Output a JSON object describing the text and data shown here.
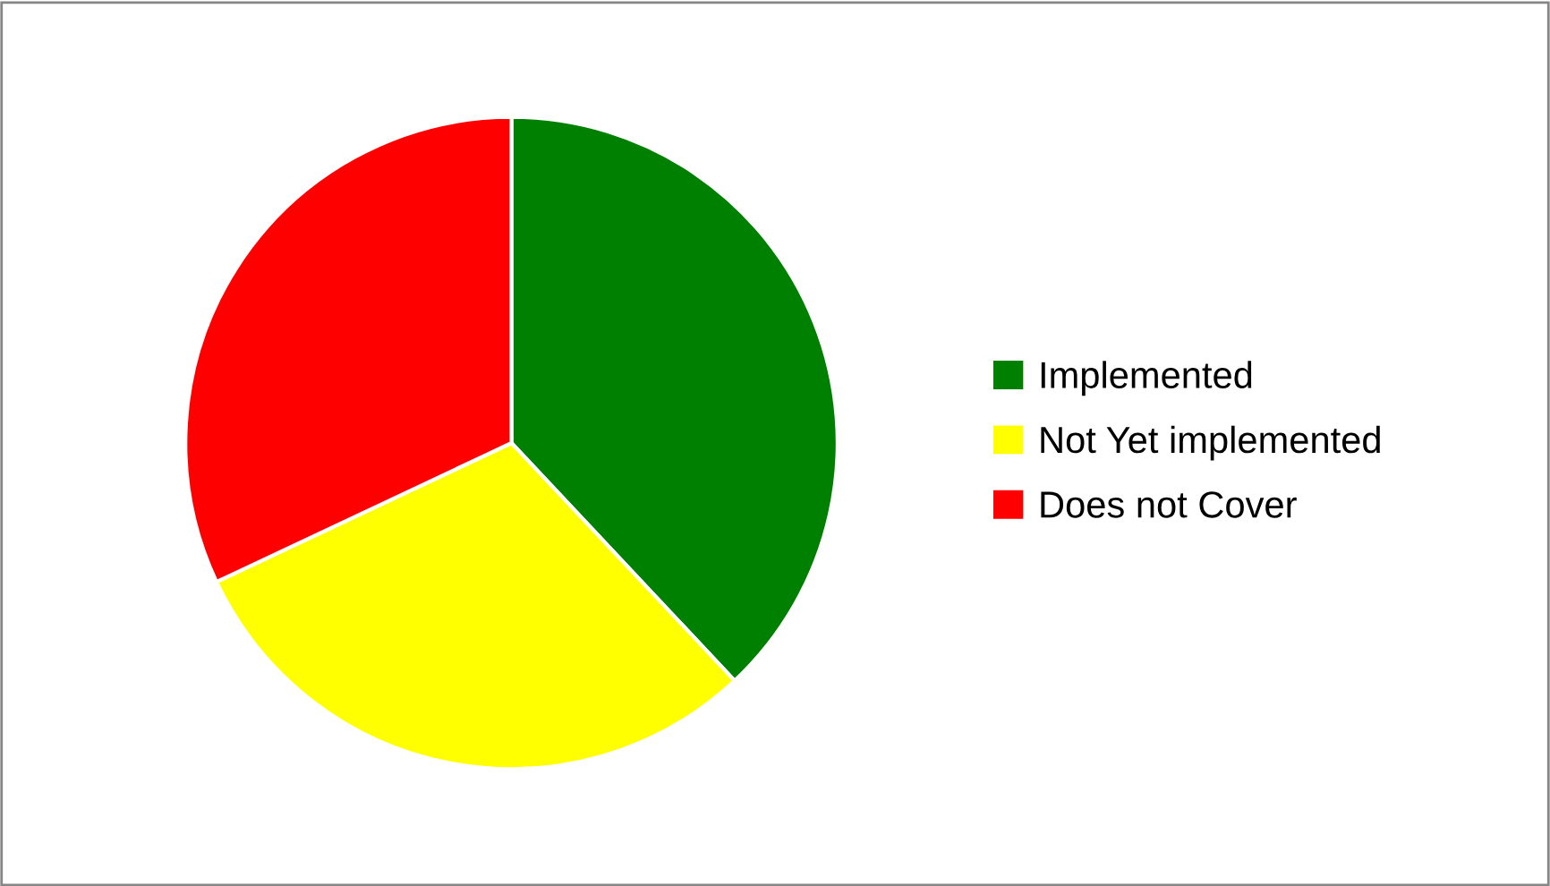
{
  "chart_data": {
    "type": "pie",
    "categories": [
      "Implemented",
      "Not Yet implemented",
      "Does not Cover"
    ],
    "values": [
      38,
      30,
      32
    ],
    "colors": [
      "#008000",
      "#ffff00",
      "#ff0000"
    ],
    "legend": "right"
  }
}
